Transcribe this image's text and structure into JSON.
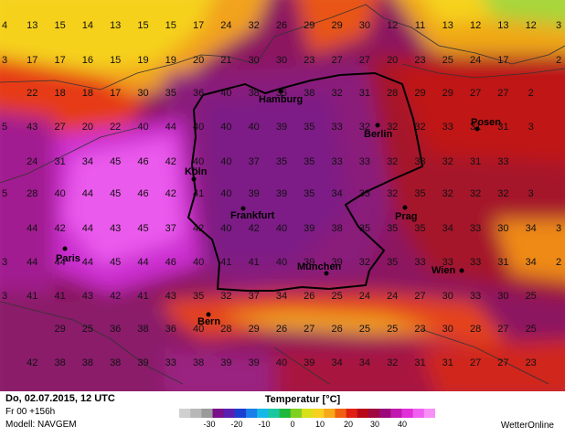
{
  "info": {
    "valid_date": "Do, 02.07.2015, 12 UTC",
    "forecast_step": "Fr 00 +156h",
    "model": "Modell: NAVGEM"
  },
  "legend": {
    "title": "Temperatur [°C]",
    "ticks": [
      "-30",
      "-20",
      "-10",
      "0",
      "10",
      "20",
      "30",
      "40"
    ],
    "colors": [
      "#cfcfcf",
      "#b8b8b8",
      "#9a9a9a",
      "#7a0f8a",
      "#5a1fb0",
      "#1a3fd0",
      "#1a7fe8",
      "#16b8e8",
      "#19c8a0",
      "#1fb83c",
      "#7fd020",
      "#d8e018",
      "#f8d020",
      "#f8a818",
      "#f06010",
      "#e02010",
      "#b80818",
      "#a00840",
      "#9a0a7a",
      "#c018b0",
      "#e030d8",
      "#f060f0",
      "#f890f8"
    ]
  },
  "brand": "WetterOnline",
  "cities": [
    {
      "name": "Hamburg"
    },
    {
      "name": "Berlin"
    },
    {
      "name": "Posen"
    },
    {
      "name": "Köln"
    },
    {
      "name": "Frankfurt"
    },
    {
      "name": "Prag"
    },
    {
      "name": "Paris"
    },
    {
      "name": "München"
    },
    {
      "name": "Wien"
    },
    {
      "name": "Bern"
    }
  ],
  "grid_rows": [
    [
      "4",
      "13",
      "15",
      "14",
      "13",
      "15",
      "15",
      "17",
      "24",
      "32",
      "26",
      "29",
      "29",
      "30",
      "12",
      "11",
      "13",
      "12",
      "13",
      "12",
      "3"
    ],
    [
      "3",
      "17",
      "17",
      "16",
      "15",
      "19",
      "19",
      "20",
      "21",
      "30",
      "30",
      "23",
      "27",
      "27",
      "20",
      "23",
      "25",
      "24",
      "17",
      "",
      "2"
    ],
    [
      "",
      "22",
      "18",
      "18",
      "17",
      "30",
      "35",
      "36",
      "40",
      "38",
      "35",
      "38",
      "32",
      "31",
      "28",
      "29",
      "29",
      "27",
      "27",
      "2",
      ""
    ],
    [
      "5",
      "43",
      "27",
      "20",
      "22",
      "40",
      "44",
      "40",
      "40",
      "40",
      "39",
      "35",
      "33",
      "32",
      "32",
      "32",
      "33",
      "31",
      "31",
      "3",
      ""
    ],
    [
      "",
      "24",
      "31",
      "34",
      "45",
      "46",
      "42",
      "40",
      "40",
      "37",
      "35",
      "35",
      "33",
      "33",
      "32",
      "33",
      "32",
      "31",
      "33",
      "",
      ""
    ],
    [
      "5",
      "28",
      "40",
      "44",
      "45",
      "46",
      "42",
      "41",
      "40",
      "39",
      "39",
      "35",
      "34",
      "33",
      "32",
      "35",
      "32",
      "32",
      "32",
      "3",
      ""
    ],
    [
      "",
      "44",
      "42",
      "44",
      "43",
      "45",
      "37",
      "42",
      "40",
      "42",
      "40",
      "39",
      "38",
      "35",
      "35",
      "35",
      "34",
      "33",
      "30",
      "34",
      "3"
    ],
    [
      "3",
      "44",
      "44",
      "44",
      "45",
      "44",
      "46",
      "40",
      "41",
      "41",
      "40",
      "39",
      "39",
      "32",
      "35",
      "33",
      "33",
      "33",
      "31",
      "34",
      "2"
    ],
    [
      "3",
      "41",
      "41",
      "43",
      "42",
      "41",
      "43",
      "35",
      "32",
      "37",
      "34",
      "26",
      "25",
      "24",
      "24",
      "27",
      "30",
      "33",
      "30",
      "25",
      ""
    ],
    [
      "",
      "",
      "29",
      "25",
      "36",
      "38",
      "36",
      "40",
      "28",
      "29",
      "26",
      "27",
      "26",
      "25",
      "25",
      "23",
      "30",
      "28",
      "27",
      "25",
      ""
    ],
    [
      "",
      "42",
      "38",
      "38",
      "38",
      "39",
      "33",
      "38",
      "39",
      "39",
      "40",
      "39",
      "34",
      "34",
      "32",
      "31",
      "31",
      "27",
      "27",
      "23",
      ""
    ]
  ]
}
